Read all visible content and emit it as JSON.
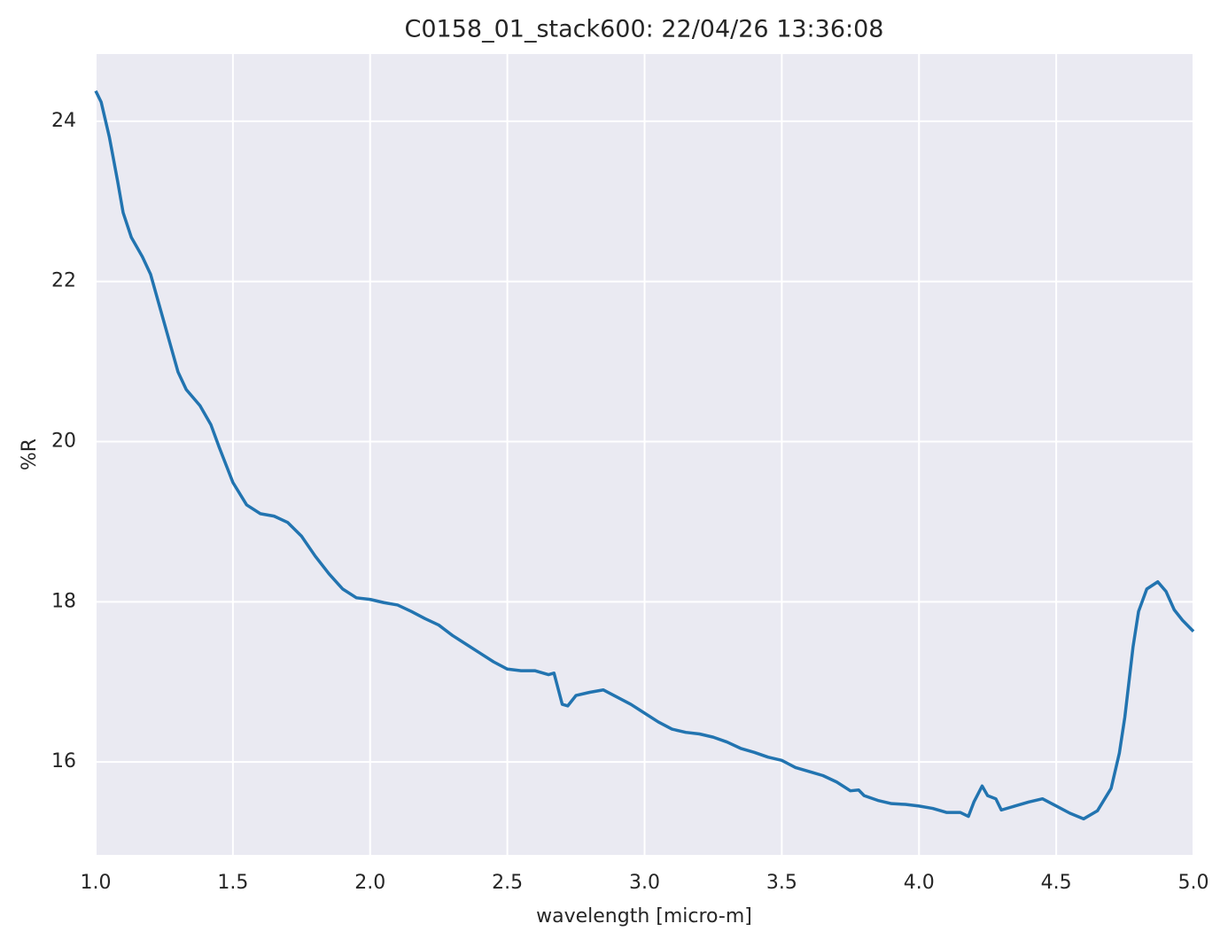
{
  "chart_data": {
    "type": "line",
    "title": "C0158_01_stack600:  22/04/26 13:36:08",
    "xlabel": "wavelength [micro-m]",
    "ylabel": "%R",
    "xlim": [
      1.0,
      5.0
    ],
    "ylim": [
      14.84,
      24.84
    ],
    "xticks": [
      {
        "value": 1.0,
        "label": "1.0"
      },
      {
        "value": 1.5,
        "label": "1.5"
      },
      {
        "value": 2.0,
        "label": "2.0"
      },
      {
        "value": 2.5,
        "label": "2.5"
      },
      {
        "value": 3.0,
        "label": "3.0"
      },
      {
        "value": 3.5,
        "label": "3.5"
      },
      {
        "value": 4.0,
        "label": "4.0"
      },
      {
        "value": 4.5,
        "label": "4.5"
      },
      {
        "value": 5.0,
        "label": "5.0"
      }
    ],
    "yticks": [
      16,
      18,
      20,
      22,
      24
    ],
    "grid": true,
    "x": [
      1.0,
      1.02,
      1.05,
      1.08,
      1.1,
      1.13,
      1.17,
      1.2,
      1.25,
      1.3,
      1.33,
      1.38,
      1.42,
      1.45,
      1.5,
      1.55,
      1.6,
      1.65,
      1.7,
      1.75,
      1.8,
      1.85,
      1.9,
      1.95,
      2.0,
      2.05,
      2.1,
      2.15,
      2.2,
      2.25,
      2.3,
      2.35,
      2.4,
      2.45,
      2.5,
      2.55,
      2.6,
      2.65,
      2.67,
      2.7,
      2.72,
      2.75,
      2.8,
      2.85,
      2.9,
      2.95,
      3.0,
      3.05,
      3.1,
      3.15,
      3.2,
      3.25,
      3.3,
      3.35,
      3.4,
      3.45,
      3.5,
      3.55,
      3.6,
      3.65,
      3.7,
      3.75,
      3.78,
      3.8,
      3.85,
      3.9,
      3.95,
      4.0,
      4.05,
      4.1,
      4.15,
      4.18,
      4.2,
      4.23,
      4.25,
      4.28,
      4.3,
      4.35,
      4.4,
      4.45,
      4.5,
      4.55,
      4.6,
      4.65,
      4.7,
      4.73,
      4.75,
      4.78,
      4.8,
      4.83,
      4.87,
      4.9,
      4.93,
      4.96,
      5.0
    ],
    "series": [
      {
        "color": "#2274b0",
        "values": [
          24.38,
          24.24,
          23.8,
          23.25,
          22.86,
          22.55,
          22.31,
          22.09,
          21.48,
          20.87,
          20.65,
          20.45,
          20.21,
          19.93,
          19.49,
          19.21,
          19.1,
          19.07,
          18.99,
          18.82,
          18.57,
          18.35,
          18.16,
          18.05,
          18.03,
          17.99,
          17.96,
          17.88,
          17.79,
          17.71,
          17.58,
          17.47,
          17.36,
          17.25,
          17.16,
          17.14,
          17.14,
          17.09,
          17.11,
          16.72,
          16.7,
          16.83,
          16.87,
          16.9,
          16.81,
          16.72,
          16.61,
          16.5,
          16.41,
          16.37,
          16.35,
          16.31,
          16.25,
          16.17,
          16.12,
          16.06,
          16.02,
          15.93,
          15.88,
          15.83,
          15.75,
          15.64,
          15.65,
          15.58,
          15.52,
          15.48,
          15.47,
          15.45,
          15.42,
          15.37,
          15.37,
          15.32,
          15.5,
          15.7,
          15.58,
          15.54,
          15.4,
          15.45,
          15.5,
          15.54,
          15.45,
          15.36,
          15.29,
          15.39,
          15.67,
          16.11,
          16.56,
          17.44,
          17.88,
          18.16,
          18.25,
          18.13,
          17.9,
          17.77,
          17.63
        ]
      }
    ]
  }
}
